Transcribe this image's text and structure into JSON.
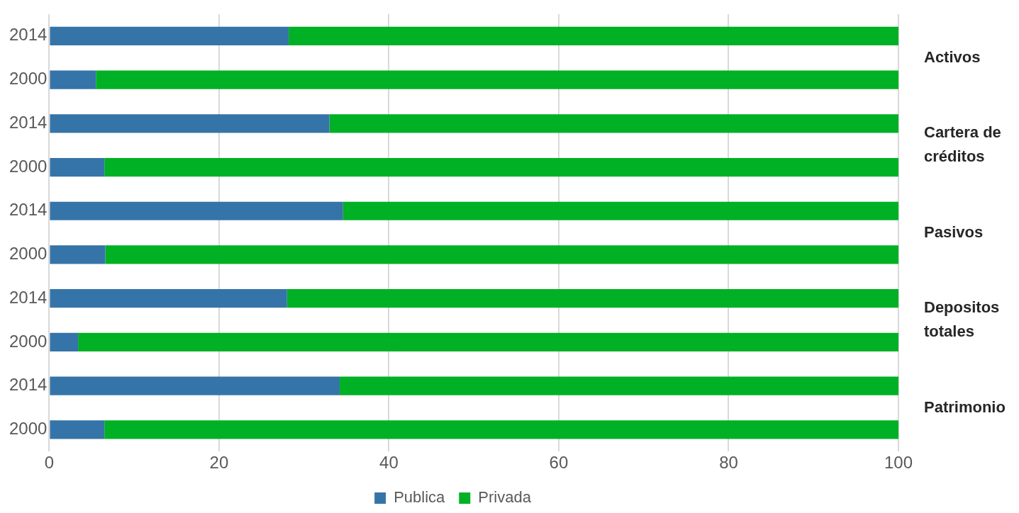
{
  "chart_data": {
    "type": "bar",
    "orientation": "horizontal",
    "stacked": true,
    "categories": [
      "2014",
      "2000",
      "2014",
      "2000",
      "2014",
      "2000",
      "2014",
      "2000",
      "2014",
      "2000"
    ],
    "series": [
      {
        "name": "Publica",
        "color": "#3574a8",
        "values": [
          28.2,
          5.5,
          33.0,
          6.5,
          34.6,
          6.6,
          28.0,
          3.4,
          34.2,
          6.5
        ]
      },
      {
        "name": "Privada",
        "color": "#00b025",
        "values": [
          71.8,
          94.5,
          67.0,
          93.5,
          65.4,
          93.4,
          72.0,
          96.6,
          65.8,
          93.5
        ]
      }
    ],
    "xlim": [
      0,
      100
    ],
    "xticks": [
      0,
      20,
      40,
      60,
      80,
      100
    ],
    "grid": "x",
    "legend": "bottom",
    "annotations": [
      "Activos",
      "Cartera de\ncréditos",
      "Pasivos",
      "Depositos\ntotales",
      "Patrimonio"
    ]
  }
}
